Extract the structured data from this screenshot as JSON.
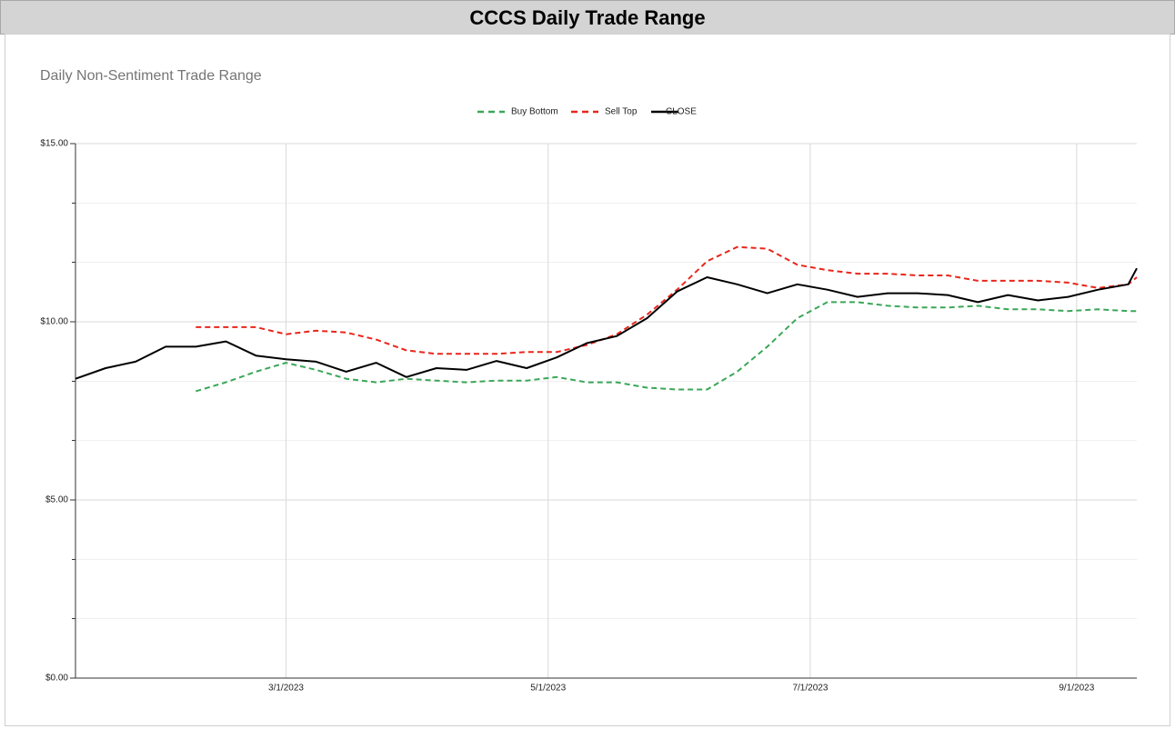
{
  "header": {
    "title": "CCCS Daily Trade Range"
  },
  "chart_data": {
    "type": "line",
    "title": "Daily Non-Sentiment Trade Range",
    "x": [
      "1/11/2023",
      "1/18/2023",
      "1/25/2023",
      "2/1/2023",
      "2/8/2023",
      "2/15/2023",
      "2/22/2023",
      "3/1/2023",
      "3/8/2023",
      "3/15/2023",
      "3/22/2023",
      "3/29/2023",
      "4/5/2023",
      "4/12/2023",
      "4/19/2023",
      "4/26/2023",
      "5/3/2023",
      "5/10/2023",
      "5/17/2023",
      "5/24/2023",
      "5/31/2023",
      "6/7/2023",
      "6/14/2023",
      "6/21/2023",
      "6/28/2023",
      "7/5/2023",
      "7/12/2023",
      "7/19/2023",
      "7/26/2023",
      "8/2/2023",
      "8/9/2023",
      "8/16/2023",
      "8/23/2023",
      "8/30/2023",
      "9/6/2023",
      "9/13/2023",
      "9/15/2023"
    ],
    "series": [
      {
        "name": "Buy Bottom",
        "color": "#3aa757",
        "dash": true,
        "values": [
          null,
          null,
          null,
          null,
          8.05,
          8.3,
          8.6,
          8.85,
          8.65,
          8.4,
          8.3,
          8.4,
          8.35,
          8.3,
          8.35,
          8.35,
          8.45,
          8.3,
          8.3,
          8.15,
          8.1,
          8.1,
          8.6,
          9.3,
          10.1,
          10.55,
          10.55,
          10.45,
          10.4,
          10.4,
          10.45,
          10.35,
          10.35,
          10.3,
          10.35,
          10.3,
          10.3
        ]
      },
      {
        "name": "Sell Top",
        "color": "#e8261b",
        "dash": true,
        "values": [
          null,
          null,
          null,
          null,
          9.85,
          9.85,
          9.85,
          9.65,
          9.75,
          9.7,
          9.5,
          9.2,
          9.1,
          9.1,
          9.1,
          9.15,
          9.15,
          9.35,
          9.65,
          10.2,
          10.9,
          11.7,
          12.1,
          12.05,
          11.6,
          11.45,
          11.35,
          11.35,
          11.3,
          11.3,
          11.15,
          11.15,
          11.15,
          11.1,
          10.95,
          11.05,
          11.25
        ]
      },
      {
        "name": "CLOSE",
        "color": "#000000",
        "dash": false,
        "values": [
          8.4,
          8.7,
          8.88,
          9.3,
          9.3,
          9.45,
          9.05,
          8.95,
          8.88,
          8.6,
          8.85,
          8.45,
          8.7,
          8.65,
          8.9,
          8.7,
          9.0,
          9.4,
          9.6,
          10.1,
          10.85,
          11.25,
          11.05,
          10.8,
          11.05,
          10.9,
          10.7,
          10.8,
          10.8,
          10.75,
          10.55,
          10.75,
          10.6,
          10.7,
          10.9,
          11.05,
          11.5
        ]
      }
    ],
    "xlim": [
      "1/11/2023",
      "9/15/2023"
    ],
    "xticks": [
      "3/1/2023",
      "5/1/2023",
      "7/1/2023",
      "9/1/2023"
    ],
    "ylim": [
      0,
      15
    ],
    "yticks": [
      {
        "value": 0,
        "label": "$0.00"
      },
      {
        "value": 5,
        "label": "$5.00"
      },
      {
        "value": 10,
        "label": "$10.00"
      },
      {
        "value": 15,
        "label": "$15.00"
      }
    ],
    "minor_yticks": [
      1.67,
      3.33,
      6.67,
      8.33,
      11.67,
      13.33
    ],
    "grid": true,
    "legend": "top"
  }
}
